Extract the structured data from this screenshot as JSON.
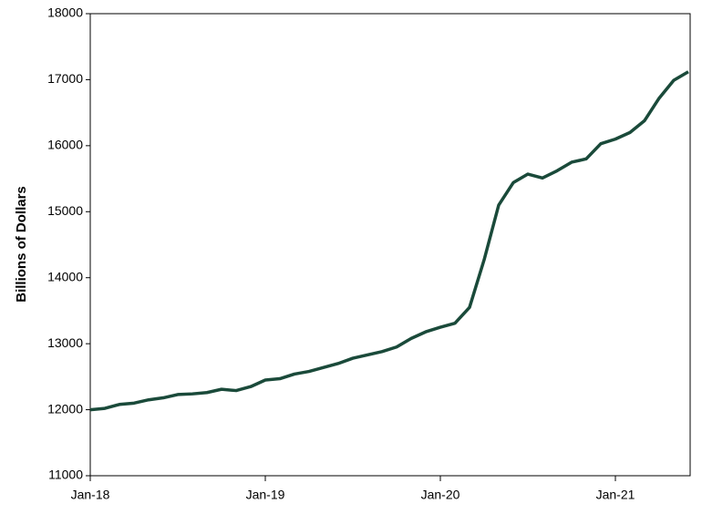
{
  "chart_data": {
    "type": "line",
    "y_label": "Billions of Dollars",
    "categories": [
      "Jan-18",
      null,
      null,
      null,
      null,
      null,
      null,
      null,
      null,
      null,
      null,
      null,
      "Jan-19",
      null,
      null,
      null,
      null,
      null,
      null,
      null,
      null,
      null,
      null,
      null,
      "Jan-20",
      null,
      null,
      null,
      null,
      null,
      null,
      null,
      null,
      null,
      null,
      null,
      "Jan-21",
      null,
      null,
      null,
      null,
      null
    ],
    "series": [
      {
        "color": "#1a4a3a",
        "values": [
          12000,
          12020,
          12080,
          12100,
          12150,
          12180,
          12230,
          12240,
          12260,
          12310,
          12290,
          12350,
          12450,
          12470,
          12540,
          12580,
          12640,
          12700,
          12780,
          12830,
          12880,
          12950,
          13080,
          13180,
          13250,
          13310,
          13550,
          14270,
          15100,
          15440,
          15570,
          15510,
          15620,
          15750,
          15800,
          16030,
          16100,
          16200,
          16380,
          16720,
          16990,
          17120
        ]
      }
    ],
    "ylim": [
      11000,
      18000
    ],
    "yticks": [
      11000,
      12000,
      13000,
      14000,
      15000,
      16000,
      17000,
      18000
    ],
    "grid": false
  }
}
